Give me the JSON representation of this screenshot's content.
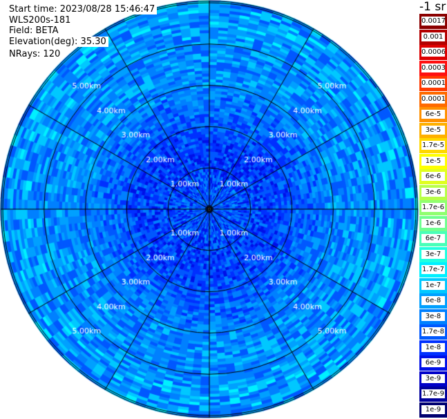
{
  "header": {
    "start_time": "Start time: 2023/08/28 15:46:47",
    "instrument": "WLS200s-181",
    "field": "Field: BETA",
    "elevation": "Elevation(deg): 35.30",
    "nrays": "NRays: 120"
  },
  "legend": {
    "unit_label": "-1 sr",
    "entries": [
      {
        "label": "0.0017",
        "color": "#8b0000"
      },
      {
        "label": "0.001",
        "color": "#b30000"
      },
      {
        "label": "0.0006",
        "color": "#dd0000"
      },
      {
        "label": "0.0003",
        "color": "#ff1010"
      },
      {
        "label": "0.00017",
        "color": "#ff3a00"
      },
      {
        "label": "0.0001",
        "color": "#ff6a00"
      },
      {
        "label": "6e-5",
        "color": "#ff9000"
      },
      {
        "label": "3e-5",
        "color": "#ffb000"
      },
      {
        "label": "1.7e-5",
        "color": "#ffd800"
      },
      {
        "label": "1e-5",
        "color": "#ffff00"
      },
      {
        "label": "6e-6",
        "color": "#e0ff20"
      },
      {
        "label": "3e-6",
        "color": "#b8ff48"
      },
      {
        "label": "1.7e-6",
        "color": "#90ff70"
      },
      {
        "label": "1e-6",
        "color": "#70ff90"
      },
      {
        "label": "6e-7",
        "color": "#48ffb8"
      },
      {
        "label": "3e-7",
        "color": "#20ffe0"
      },
      {
        "label": "1.7e-7",
        "color": "#00f0ff"
      },
      {
        "label": "1e-7",
        "color": "#00c8ff"
      },
      {
        "label": "6e-8",
        "color": "#00a0ff"
      },
      {
        "label": "3e-8",
        "color": "#0080ff"
      },
      {
        "label": "1.7e-8",
        "color": "#0058ff"
      },
      {
        "label": "1e-8",
        "color": "#0030ff"
      },
      {
        "label": "6e-9",
        "color": "#0010e8"
      },
      {
        "label": "3e-9",
        "color": "#0000c8"
      },
      {
        "label": "1.7e-9",
        "color": "#00009c"
      },
      {
        "label": "1e-9",
        "color": "#000070"
      }
    ]
  },
  "chart_data": {
    "type": "heatmap",
    "projection": "polar",
    "field": "BETA",
    "units": "-1 sr",
    "elevation_deg": 35.3,
    "n_rays": 120,
    "max_range_km": 5.05,
    "range_rings_km": [
      1,
      2,
      3,
      4,
      5
    ],
    "ring_labels": [
      "1.00km",
      "2.00km",
      "3.00km",
      "4.00km",
      "5.00km"
    ],
    "azimuth_lines_deg": [
      0,
      30,
      60,
      90,
      120,
      150,
      180,
      210,
      240,
      270,
      300,
      330
    ],
    "value_scale": "log",
    "value_range": [
      1e-09,
      0.0017
    ],
    "range_profile": [
      {
        "range_km": 0.5,
        "beta_typical": 2e-08,
        "beta_spread": [
          6e-09,
          6e-08
        ]
      },
      {
        "range_km": 1.5,
        "beta_typical": 1.5e-08,
        "beta_spread": [
          6e-09,
          3e-08
        ]
      },
      {
        "range_km": 3.0,
        "beta_typical": 3e-08,
        "beta_spread": [
          1.7e-08,
          1e-07
        ]
      },
      {
        "range_km": 4.5,
        "beta_typical": 5e-08,
        "beta_spread": [
          1.7e-08,
          1.7e-07
        ]
      }
    ],
    "grid": true
  }
}
